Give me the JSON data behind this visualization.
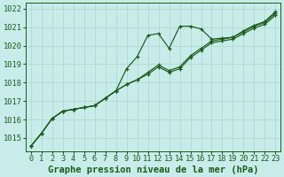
{
  "background_color": "#c8ece9",
  "grid_color": "#aed4d0",
  "line_color": "#1a5c1a",
  "text_color": "#1a5c1a",
  "xlabel": "Graphe pression niveau de la mer (hPa)",
  "xlabel_fontsize": 7.5,
  "tick_fontsize": 6.2,
  "ylim": [
    1014.3,
    1022.3
  ],
  "xlim": [
    -0.5,
    23.5
  ],
  "yticks": [
    1015,
    1016,
    1017,
    1018,
    1019,
    1020,
    1021,
    1022
  ],
  "xticks": [
    0,
    1,
    2,
    3,
    4,
    5,
    6,
    7,
    8,
    9,
    10,
    11,
    12,
    13,
    14,
    15,
    16,
    17,
    18,
    19,
    20,
    21,
    22,
    23
  ],
  "series": [
    [
      1014.55,
      1015.25,
      1016.05,
      1016.45,
      1016.55,
      1016.65,
      1016.75,
      1017.15,
      1017.55,
      1018.75,
      1019.4,
      1020.55,
      1020.65,
      1019.85,
      1021.05,
      1021.05,
      1020.9,
      1020.35,
      1020.4,
      1020.45,
      1020.8,
      1021.1,
      1021.3,
      1021.85
    ],
    [
      1014.55,
      1015.25,
      1016.05,
      1016.45,
      1016.55,
      1016.65,
      1016.75,
      1017.15,
      1017.55,
      1017.9,
      1018.15,
      1018.55,
      1018.95,
      1018.65,
      1018.85,
      1019.45,
      1019.85,
      1020.25,
      1020.35,
      1020.45,
      1020.75,
      1021.05,
      1021.25,
      1021.75
    ],
    [
      1014.55,
      1015.25,
      1016.05,
      1016.45,
      1016.55,
      1016.65,
      1016.75,
      1017.15,
      1017.55,
      1017.9,
      1018.15,
      1018.45,
      1018.85,
      1018.55,
      1018.75,
      1019.35,
      1019.75,
      1020.15,
      1020.25,
      1020.35,
      1020.65,
      1020.95,
      1021.15,
      1021.65
    ]
  ],
  "marker": "+",
  "markersize": 3.5,
  "markeredgewidth": 0.9,
  "linewidth": 0.85
}
